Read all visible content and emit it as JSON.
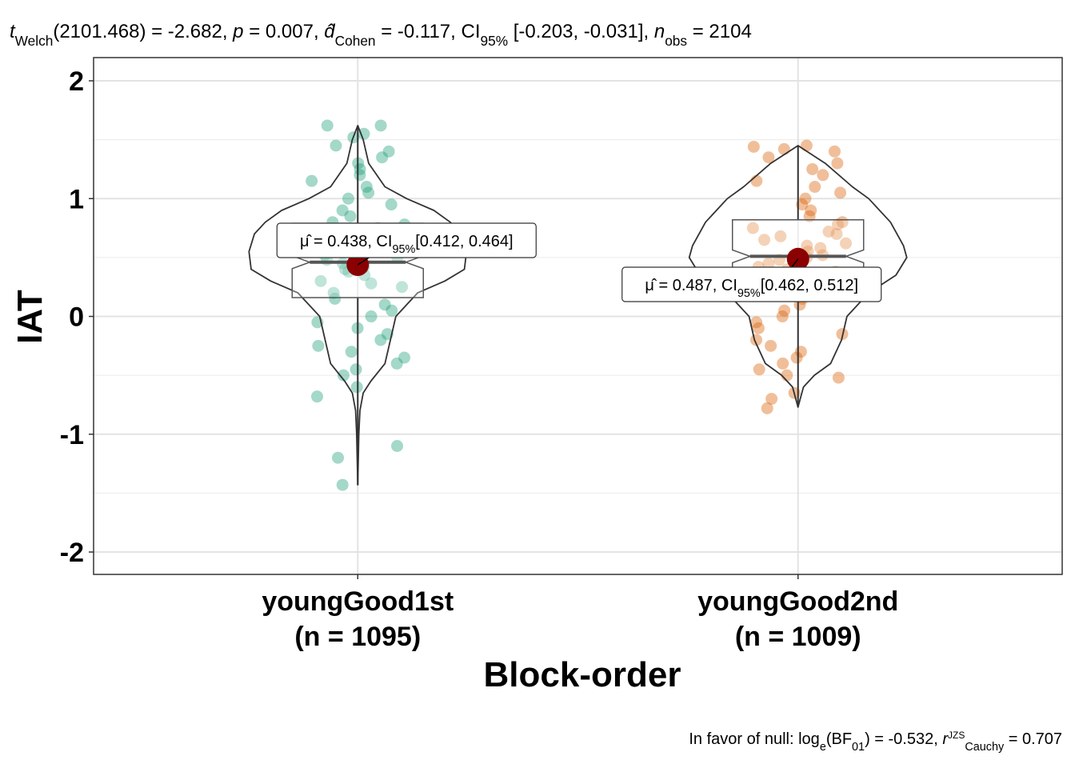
{
  "chart_data": {
    "type": "violin-box",
    "subtitle": [
      {
        "t": "t",
        "s": "i"
      },
      {
        "t": "Welch",
        "s": "sub"
      },
      {
        "t": "(2101.468) = -2.682, "
      },
      {
        "t": "p",
        "s": "i"
      },
      {
        "t": " = 0.007, "
      },
      {
        "t": "d̂",
        "s": "i"
      },
      {
        "t": "Cohen",
        "s": "sub"
      },
      {
        "t": " = -0.117, CI"
      },
      {
        "t": "95%",
        "s": "sub"
      },
      {
        "t": " [-0.203, -0.031], "
      },
      {
        "t": "n",
        "s": "i"
      },
      {
        "t": "obs",
        "s": "sub"
      },
      {
        "t": " = 2104"
      }
    ],
    "caption": [
      {
        "t": "In favor of null: log"
      },
      {
        "t": "e",
        "s": "sub"
      },
      {
        "t": "(BF"
      },
      {
        "t": "01",
        "s": "sub"
      },
      {
        "t": ") = -0.532, "
      },
      {
        "t": "r",
        "s": "i"
      },
      {
        "t": "JZS",
        "s": "sup"
      },
      {
        "t": "Cauchy",
        "s": "sub"
      },
      {
        "t": " = 0.707"
      }
    ],
    "x_label": "Block-order",
    "y_label": "IAT",
    "categories": [
      "youngGood1st",
      "youngGood2nd"
    ],
    "n_labels": [
      "(n = 1095)",
      "(n = 1009)"
    ],
    "ylim": [
      -2.19,
      2.197
    ],
    "yticks": [
      -2,
      -1,
      0,
      1,
      2
    ],
    "minor_grid": [
      -1.5,
      -0.5,
      0.5,
      1.5
    ],
    "grid": true,
    "series": [
      {
        "color": "#1b9e77",
        "mean": 0.438,
        "mean_label": [
          {
            "t": "μ̂ = 0.438, CI"
          },
          {
            "t": "95%",
            "s": "sub"
          },
          {
            "t": "[0.412, 0.464]"
          }
        ],
        "box": {
          "whisker_low": -1.43,
          "q1": 0.16,
          "median": 0.46,
          "q3": 0.79,
          "whisker_high": 1.62
        },
        "violin": {
          "y": [
            1.62,
            1.5,
            1.3,
            1.1,
            1.0,
            0.9,
            0.8,
            0.7,
            0.55,
            0.4,
            0.3,
            0.2,
            0.0,
            -0.2,
            -0.4,
            -0.55,
            -0.65,
            -0.8,
            -1.0,
            -1.43
          ],
          "density": [
            0,
            0.05,
            0.1,
            0.25,
            0.45,
            0.7,
            0.85,
            0.95,
            1.0,
            0.98,
            0.8,
            0.55,
            0.35,
            0.3,
            0.25,
            0.12,
            0.05,
            0.02,
            0.01,
            0
          ]
        },
        "points": [
          1.62,
          1.62,
          1.55,
          1.52,
          1.45,
          1.4,
          1.35,
          1.3,
          1.25,
          1.2,
          1.15,
          1.1,
          1.05,
          1.0,
          0.95,
          0.9,
          0.85,
          0.8,
          0.78,
          0.75,
          0.7,
          0.68,
          0.65,
          0.62,
          0.6,
          0.58,
          0.55,
          0.52,
          0.5,
          0.48,
          0.45,
          0.42,
          0.4,
          0.38,
          0.35,
          0.3,
          0.28,
          0.25,
          0.2,
          0.15,
          0.1,
          0.05,
          0.0,
          -0.05,
          -0.1,
          -0.15,
          -0.2,
          -0.25,
          -0.3,
          -0.35,
          -0.4,
          -0.45,
          -0.5,
          -0.6,
          -0.68,
          -1.1,
          -1.2,
          -1.43
        ]
      },
      {
        "color": "#d95f02",
        "mean": 0.487,
        "mean_label": [
          {
            "t": "μ̂ = 0.487, CI"
          },
          {
            "t": "95%",
            "s": "sub"
          },
          {
            "t": "[0.462, 0.512]"
          }
        ],
        "box": {
          "whisker_low": -0.77,
          "q1": 0.34,
          "median": 0.51,
          "q3": 0.82,
          "whisker_high": 1.45
        },
        "violin": {
          "y": [
            1.45,
            1.3,
            1.1,
            1.0,
            0.8,
            0.6,
            0.5,
            0.35,
            0.2,
            0.0,
            -0.2,
            -0.4,
            -0.5,
            -0.6,
            -0.77
          ],
          "density": [
            0,
            0.25,
            0.5,
            0.65,
            0.85,
            0.97,
            1.0,
            0.9,
            0.65,
            0.45,
            0.4,
            0.3,
            0.15,
            0.05,
            0
          ]
        },
        "points": [
          1.45,
          1.44,
          1.42,
          1.4,
          1.35,
          1.3,
          1.25,
          1.2,
          1.15,
          1.1,
          1.05,
          1.0,
          0.95,
          0.9,
          0.85,
          0.8,
          0.78,
          0.75,
          0.72,
          0.7,
          0.68,
          0.65,
          0.62,
          0.6,
          0.58,
          0.55,
          0.52,
          0.5,
          0.48,
          0.45,
          0.42,
          0.4,
          0.38,
          0.35,
          0.3,
          0.25,
          0.2,
          0.15,
          0.1,
          0.05,
          0.0,
          -0.05,
          -0.1,
          -0.15,
          -0.2,
          -0.25,
          -0.3,
          -0.35,
          -0.4,
          -0.45,
          -0.5,
          -0.52,
          -0.65,
          -0.7,
          -0.78
        ]
      }
    ]
  }
}
